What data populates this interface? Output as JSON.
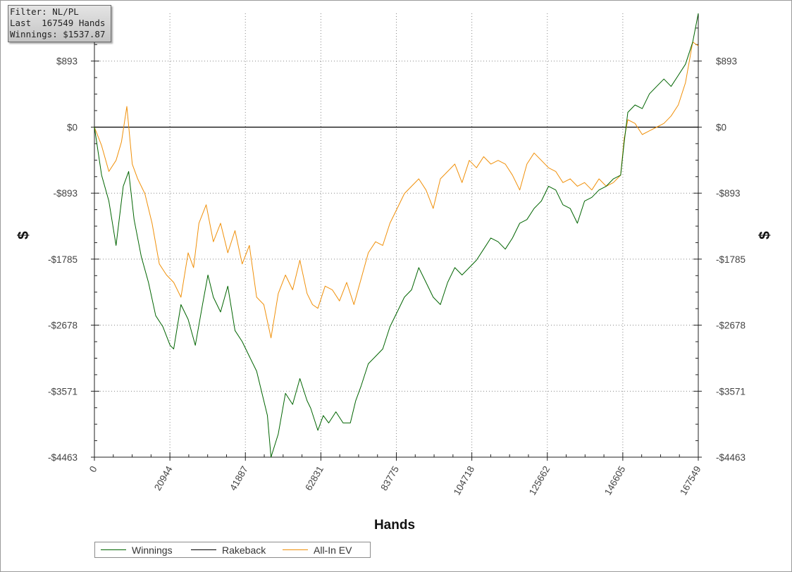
{
  "filter_box": {
    "line1": "Filter: NL/PL",
    "line2": "Last  167549 Hands",
    "line3": "Winnings: $1537.87"
  },
  "colors": {
    "winnings": "#006400",
    "rakeback": "#000000",
    "allin_ev": "#f0900a",
    "grid": "#888888"
  },
  "chart_data": {
    "type": "line",
    "title": "",
    "xlabel": "Hands",
    "ylabel": "$",
    "xlim": [
      0,
      167549
    ],
    "ylim": [
      -4463,
      1537.87
    ],
    "xticks": [
      0,
      20944,
      41887,
      62831,
      83775,
      104718,
      125662,
      146605,
      167549
    ],
    "xtick_labels": [
      "0",
      "20944",
      "41887",
      "62831",
      "83775",
      "104718",
      "125662",
      "146605",
      "167549"
    ],
    "yticks": [
      893,
      0,
      -893,
      -1785,
      -2678,
      -3571,
      -4463
    ],
    "ytick_labels": [
      "$893",
      "$0",
      "-$893",
      "-$1785",
      "-$2678",
      "-$3571",
      "-$4463"
    ],
    "grid": true,
    "legend_position": "bottom-left",
    "series": [
      {
        "name": "Winnings",
        "x": [
          0,
          2000,
          4000,
          6000,
          8000,
          9500,
          11000,
          13000,
          15000,
          17000,
          19000,
          21000,
          22000,
          24000,
          26000,
          28000,
          30000,
          31500,
          33000,
          35000,
          37000,
          39000,
          41000,
          43000,
          45000,
          47000,
          48000,
          49000,
          51000,
          53000,
          55000,
          57000,
          59000,
          60000,
          62000,
          63500,
          65000,
          67000,
          69000,
          71000,
          72500,
          74000,
          76000,
          78000,
          80000,
          82000,
          84000,
          86000,
          88000,
          90000,
          92000,
          94000,
          96000,
          98000,
          100000,
          102000,
          104000,
          106000,
          108000,
          110000,
          112000,
          114000,
          116000,
          118000,
          120000,
          122000,
          124000,
          126000,
          128000,
          130000,
          132000,
          134000,
          136000,
          138000,
          140000,
          142000,
          144000,
          146000,
          147000,
          148000,
          150000,
          152000,
          154000,
          156000,
          158000,
          160000,
          162000,
          164000,
          166000,
          167549
        ],
        "values": [
          0,
          -650,
          -1000,
          -1600,
          -800,
          -600,
          -1250,
          -1750,
          -2100,
          -2550,
          -2700,
          -2950,
          -3000,
          -2400,
          -2600,
          -2950,
          -2400,
          -2000,
          -2300,
          -2500,
          -2150,
          -2750,
          -2900,
          -3100,
          -3300,
          -3700,
          -3900,
          -4463,
          -4150,
          -3600,
          -3750,
          -3400,
          -3700,
          -3800,
          -4100,
          -3900,
          -4000,
          -3850,
          -4000,
          -4000,
          -3700,
          -3500,
          -3200,
          -3100,
          -3000,
          -2700,
          -2500,
          -2300,
          -2200,
          -1900,
          -2100,
          -2300,
          -2400,
          -2100,
          -1900,
          -2000,
          -1900,
          -1800,
          -1650,
          -1500,
          -1550,
          -1650,
          -1500,
          -1300,
          -1250,
          -1100,
          -1000,
          -800,
          -850,
          -1050,
          -1100,
          -1300,
          -1000,
          -950,
          -850,
          -800,
          -700,
          -650,
          -200,
          200,
          300,
          250,
          450,
          550,
          650,
          550,
          700,
          850,
          1150,
          1537.87
        ]
      },
      {
        "name": "Rakeback",
        "x": [
          0,
          167549
        ],
        "values": [
          0,
          0
        ]
      },
      {
        "name": "All-In EV",
        "x": [
          0,
          2000,
          4000,
          6000,
          7500,
          9000,
          10500,
          12000,
          14000,
          16000,
          18000,
          20000,
          22000,
          24000,
          26000,
          27500,
          29000,
          31000,
          33000,
          35000,
          37000,
          39000,
          41000,
          43000,
          45000,
          47000,
          49000,
          51000,
          53000,
          55000,
          57000,
          59000,
          60500,
          62000,
          64000,
          66000,
          68000,
          70000,
          72000,
          74000,
          76000,
          78000,
          80000,
          82000,
          84000,
          86000,
          88000,
          90000,
          92000,
          94000,
          96000,
          98000,
          100000,
          102000,
          104000,
          106000,
          108000,
          110000,
          112000,
          114000,
          116000,
          118000,
          120000,
          122000,
          124000,
          126000,
          128000,
          130000,
          132000,
          134000,
          136000,
          138000,
          140000,
          142000,
          144000,
          146000,
          147000,
          148000,
          150000,
          152000,
          154000,
          156000,
          158000,
          160000,
          162000,
          164000,
          166000,
          167549
        ],
        "values": [
          0,
          -250,
          -600,
          -450,
          -200,
          280,
          -500,
          -700,
          -900,
          -1300,
          -1850,
          -2000,
          -2100,
          -2300,
          -1700,
          -1900,
          -1300,
          -1050,
          -1550,
          -1300,
          -1700,
          -1400,
          -1850,
          -1600,
          -2300,
          -2400,
          -2850,
          -2250,
          -2000,
          -2200,
          -1800,
          -2250,
          -2400,
          -2450,
          -2150,
          -2200,
          -2350,
          -2100,
          -2400,
          -2050,
          -1700,
          -1550,
          -1600,
          -1300,
          -1100,
          -900,
          -800,
          -700,
          -850,
          -1100,
          -700,
          -600,
          -500,
          -750,
          -450,
          -550,
          -400,
          -500,
          -450,
          -500,
          -650,
          -850,
          -500,
          -350,
          -450,
          -550,
          -600,
          -750,
          -700,
          -800,
          -750,
          -850,
          -700,
          -800,
          -750,
          -650,
          -150,
          100,
          50,
          -100,
          -50,
          0,
          50,
          150,
          300,
          600,
          1150,
          1100
        ]
      }
    ]
  },
  "legend": {
    "winnings": "Winnings",
    "rakeback": "Rakeback",
    "allin_ev": "All-In EV"
  }
}
